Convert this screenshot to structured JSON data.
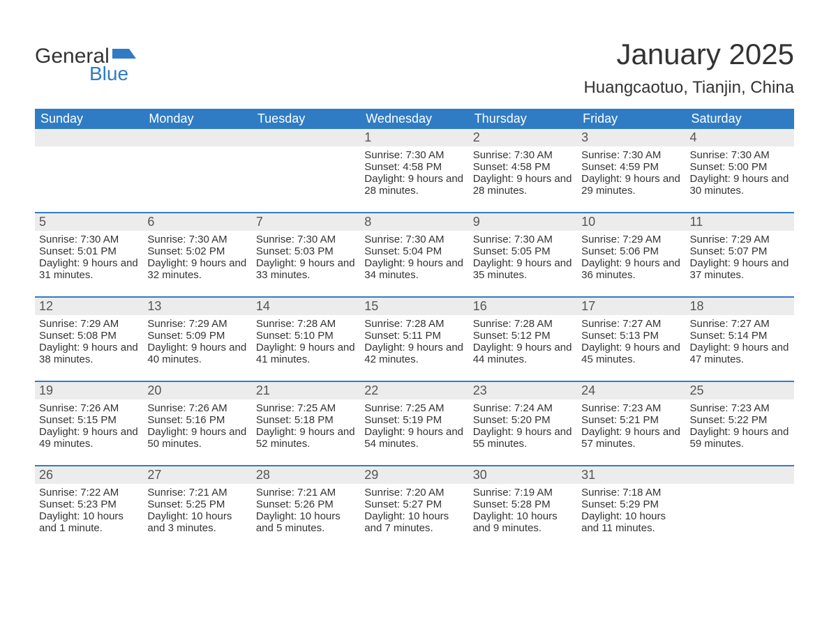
{
  "logo": {
    "general": "General",
    "blue": "Blue",
    "flag_color": "#2f7cc4"
  },
  "title": "January 2025",
  "location": "Huangcaotuo, Tianjin, China",
  "colors": {
    "header_bg": "#2f7cc4",
    "header_fg": "#ffffff",
    "daynum_bg": "#ececec",
    "week_divider": "#2f7cc4",
    "text": "#333333",
    "background": "#ffffff"
  },
  "typography": {
    "title_fontsize": 42,
    "location_fontsize": 24,
    "dayhead_fontsize": 18,
    "daynum_fontsize": 18,
    "body_fontsize": 15,
    "font_family": "Arial"
  },
  "day_names": [
    "Sunday",
    "Monday",
    "Tuesday",
    "Wednesday",
    "Thursday",
    "Friday",
    "Saturday"
  ],
  "weeks": [
    {
      "days": [
        {
          "num": "",
          "sunrise": "",
          "sunset": "",
          "daylight": ""
        },
        {
          "num": "",
          "sunrise": "",
          "sunset": "",
          "daylight": ""
        },
        {
          "num": "",
          "sunrise": "",
          "sunset": "",
          "daylight": ""
        },
        {
          "num": "1",
          "sunrise": "Sunrise: 7:30 AM",
          "sunset": "Sunset: 4:58 PM",
          "daylight": "Daylight: 9 hours and 28 minutes."
        },
        {
          "num": "2",
          "sunrise": "Sunrise: 7:30 AM",
          "sunset": "Sunset: 4:58 PM",
          "daylight": "Daylight: 9 hours and 28 minutes."
        },
        {
          "num": "3",
          "sunrise": "Sunrise: 7:30 AM",
          "sunset": "Sunset: 4:59 PM",
          "daylight": "Daylight: 9 hours and 29 minutes."
        },
        {
          "num": "4",
          "sunrise": "Sunrise: 7:30 AM",
          "sunset": "Sunset: 5:00 PM",
          "daylight": "Daylight: 9 hours and 30 minutes."
        }
      ]
    },
    {
      "days": [
        {
          "num": "5",
          "sunrise": "Sunrise: 7:30 AM",
          "sunset": "Sunset: 5:01 PM",
          "daylight": "Daylight: 9 hours and 31 minutes."
        },
        {
          "num": "6",
          "sunrise": "Sunrise: 7:30 AM",
          "sunset": "Sunset: 5:02 PM",
          "daylight": "Daylight: 9 hours and 32 minutes."
        },
        {
          "num": "7",
          "sunrise": "Sunrise: 7:30 AM",
          "sunset": "Sunset: 5:03 PM",
          "daylight": "Daylight: 9 hours and 33 minutes."
        },
        {
          "num": "8",
          "sunrise": "Sunrise: 7:30 AM",
          "sunset": "Sunset: 5:04 PM",
          "daylight": "Daylight: 9 hours and 34 minutes."
        },
        {
          "num": "9",
          "sunrise": "Sunrise: 7:30 AM",
          "sunset": "Sunset: 5:05 PM",
          "daylight": "Daylight: 9 hours and 35 minutes."
        },
        {
          "num": "10",
          "sunrise": "Sunrise: 7:29 AM",
          "sunset": "Sunset: 5:06 PM",
          "daylight": "Daylight: 9 hours and 36 minutes."
        },
        {
          "num": "11",
          "sunrise": "Sunrise: 7:29 AM",
          "sunset": "Sunset: 5:07 PM",
          "daylight": "Daylight: 9 hours and 37 minutes."
        }
      ]
    },
    {
      "days": [
        {
          "num": "12",
          "sunrise": "Sunrise: 7:29 AM",
          "sunset": "Sunset: 5:08 PM",
          "daylight": "Daylight: 9 hours and 38 minutes."
        },
        {
          "num": "13",
          "sunrise": "Sunrise: 7:29 AM",
          "sunset": "Sunset: 5:09 PM",
          "daylight": "Daylight: 9 hours and 40 minutes."
        },
        {
          "num": "14",
          "sunrise": "Sunrise: 7:28 AM",
          "sunset": "Sunset: 5:10 PM",
          "daylight": "Daylight: 9 hours and 41 minutes."
        },
        {
          "num": "15",
          "sunrise": "Sunrise: 7:28 AM",
          "sunset": "Sunset: 5:11 PM",
          "daylight": "Daylight: 9 hours and 42 minutes."
        },
        {
          "num": "16",
          "sunrise": "Sunrise: 7:28 AM",
          "sunset": "Sunset: 5:12 PM",
          "daylight": "Daylight: 9 hours and 44 minutes."
        },
        {
          "num": "17",
          "sunrise": "Sunrise: 7:27 AM",
          "sunset": "Sunset: 5:13 PM",
          "daylight": "Daylight: 9 hours and 45 minutes."
        },
        {
          "num": "18",
          "sunrise": "Sunrise: 7:27 AM",
          "sunset": "Sunset: 5:14 PM",
          "daylight": "Daylight: 9 hours and 47 minutes."
        }
      ]
    },
    {
      "days": [
        {
          "num": "19",
          "sunrise": "Sunrise: 7:26 AM",
          "sunset": "Sunset: 5:15 PM",
          "daylight": "Daylight: 9 hours and 49 minutes."
        },
        {
          "num": "20",
          "sunrise": "Sunrise: 7:26 AM",
          "sunset": "Sunset: 5:16 PM",
          "daylight": "Daylight: 9 hours and 50 minutes."
        },
        {
          "num": "21",
          "sunrise": "Sunrise: 7:25 AM",
          "sunset": "Sunset: 5:18 PM",
          "daylight": "Daylight: 9 hours and 52 minutes."
        },
        {
          "num": "22",
          "sunrise": "Sunrise: 7:25 AM",
          "sunset": "Sunset: 5:19 PM",
          "daylight": "Daylight: 9 hours and 54 minutes."
        },
        {
          "num": "23",
          "sunrise": "Sunrise: 7:24 AM",
          "sunset": "Sunset: 5:20 PM",
          "daylight": "Daylight: 9 hours and 55 minutes."
        },
        {
          "num": "24",
          "sunrise": "Sunrise: 7:23 AM",
          "sunset": "Sunset: 5:21 PM",
          "daylight": "Daylight: 9 hours and 57 minutes."
        },
        {
          "num": "25",
          "sunrise": "Sunrise: 7:23 AM",
          "sunset": "Sunset: 5:22 PM",
          "daylight": "Daylight: 9 hours and 59 minutes."
        }
      ]
    },
    {
      "days": [
        {
          "num": "26",
          "sunrise": "Sunrise: 7:22 AM",
          "sunset": "Sunset: 5:23 PM",
          "daylight": "Daylight: 10 hours and 1 minute."
        },
        {
          "num": "27",
          "sunrise": "Sunrise: 7:21 AM",
          "sunset": "Sunset: 5:25 PM",
          "daylight": "Daylight: 10 hours and 3 minutes."
        },
        {
          "num": "28",
          "sunrise": "Sunrise: 7:21 AM",
          "sunset": "Sunset: 5:26 PM",
          "daylight": "Daylight: 10 hours and 5 minutes."
        },
        {
          "num": "29",
          "sunrise": "Sunrise: 7:20 AM",
          "sunset": "Sunset: 5:27 PM",
          "daylight": "Daylight: 10 hours and 7 minutes."
        },
        {
          "num": "30",
          "sunrise": "Sunrise: 7:19 AM",
          "sunset": "Sunset: 5:28 PM",
          "daylight": "Daylight: 10 hours and 9 minutes."
        },
        {
          "num": "31",
          "sunrise": "Sunrise: 7:18 AM",
          "sunset": "Sunset: 5:29 PM",
          "daylight": "Daylight: 10 hours and 11 minutes."
        },
        {
          "num": "",
          "sunrise": "",
          "sunset": "",
          "daylight": ""
        }
      ]
    }
  ]
}
